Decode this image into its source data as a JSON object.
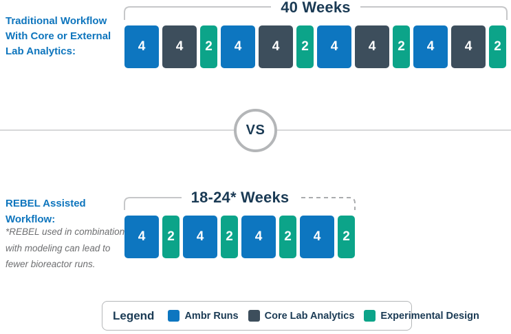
{
  "colors": {
    "ambr_blue": "#0d76c0",
    "core_dark": "#3d4e5c",
    "exp_teal": "#0ca489",
    "heading_blue": "#0e75bd",
    "navy_text": "#1a3a54",
    "gray_text": "#6d6e70",
    "bracket_gray": "#c6c7c9",
    "dash_gray": "#a9abad",
    "line_gray": "#d7d8d9",
    "circle_gray": "#b4b6b8"
  },
  "top_section": {
    "label_lines": [
      "Traditional Workflow",
      "With Core or External",
      "Lab Analytics:"
    ],
    "duration": "40 Weeks",
    "blocks": [
      {
        "weeks": 4,
        "type": "ambr"
      },
      {
        "weeks": 4,
        "type": "core"
      },
      {
        "weeks": 2,
        "type": "exp"
      },
      {
        "weeks": 4,
        "type": "ambr"
      },
      {
        "weeks": 4,
        "type": "core"
      },
      {
        "weeks": 2,
        "type": "exp"
      },
      {
        "weeks": 4,
        "type": "ambr"
      },
      {
        "weeks": 4,
        "type": "core"
      },
      {
        "weeks": 2,
        "type": "exp"
      },
      {
        "weeks": 4,
        "type": "ambr"
      },
      {
        "weeks": 4,
        "type": "core"
      },
      {
        "weeks": 2,
        "type": "exp"
      }
    ]
  },
  "divider": {
    "vs": "VS"
  },
  "bottom_section": {
    "label_lines": [
      "REBEL Assisted",
      "Workflow:"
    ],
    "footnote_lines": [
      "*REBEL used in combination",
      "with modeling can lead to",
      "fewer bioreactor runs."
    ],
    "duration": "18-24* Weeks",
    "blocks": [
      {
        "weeks": 4,
        "type": "ambr"
      },
      {
        "weeks": 2,
        "type": "exp"
      },
      {
        "weeks": 4,
        "type": "ambr"
      },
      {
        "weeks": 2,
        "type": "exp"
      },
      {
        "weeks": 4,
        "type": "ambr"
      },
      {
        "weeks": 2,
        "type": "exp"
      },
      {
        "weeks": 4,
        "type": "ambr"
      },
      {
        "weeks": 2,
        "type": "exp"
      }
    ]
  },
  "legend": {
    "title": "Legend",
    "items": [
      {
        "label": "Ambr Runs",
        "type": "ambr"
      },
      {
        "label": "Core Lab Analytics",
        "type": "core"
      },
      {
        "label": "Experimental Design",
        "type": "exp"
      }
    ]
  }
}
